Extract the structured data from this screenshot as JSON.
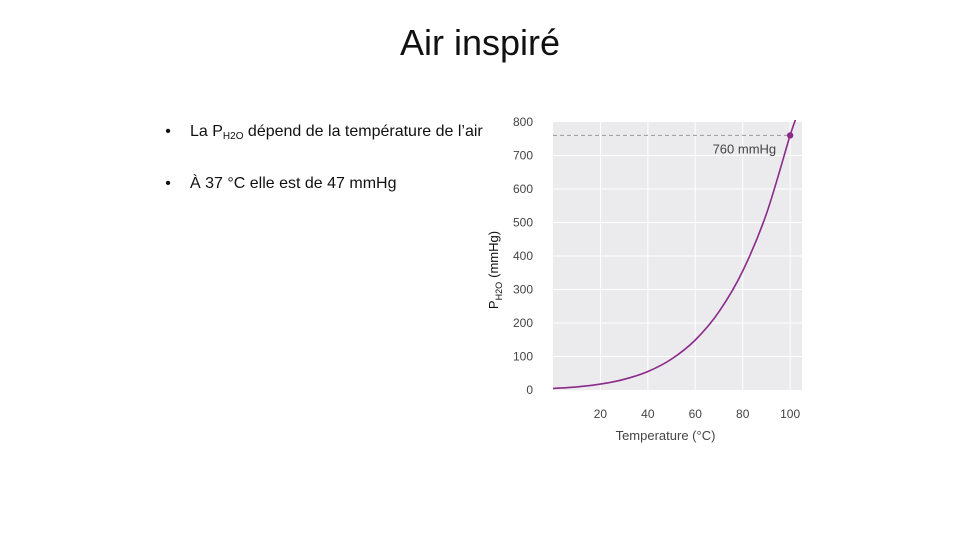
{
  "slide": {
    "title": "Air inspiré",
    "bullets": [
      {
        "prefix": "La P",
        "subscript": "H2O",
        "suffix": " dépend de la température de l’air"
      },
      {
        "text": "À 37 °C elle est de 47 mmHg"
      }
    ]
  },
  "chart_data": {
    "type": "line",
    "xlabel": "Temperature (°C)",
    "ylabel_main": "P",
    "ylabel_sub": "H2O",
    "ylabel_unit": "(mmHg)",
    "xlim": [
      0,
      105
    ],
    "ylim": [
      0,
      800
    ],
    "x_ticks": [
      20,
      40,
      60,
      80,
      100
    ],
    "y_ticks": [
      0,
      100,
      200,
      300,
      400,
      500,
      600,
      700,
      800
    ],
    "grid": true,
    "series": [
      {
        "x": [
          0,
          10,
          20,
          30,
          40,
          50,
          60,
          70,
          80,
          90,
          100,
          103
        ],
        "y": [
          4.6,
          9.2,
          17.5,
          31.8,
          55.3,
          92.5,
          149.4,
          233.7,
          355.1,
          525.8,
          760,
          820
        ],
        "color": "#8a2a8a"
      }
    ],
    "reference_line": {
      "y": 760,
      "label": "760 mmHg"
    },
    "highlight_point": {
      "x": 100,
      "y": 760
    }
  },
  "colors": {
    "plot_background": "#ebeaed",
    "grid": "#ffffff",
    "curve": "#8a2a8a",
    "reference_line": "#9a9a9a",
    "axis_text": "#444444"
  }
}
